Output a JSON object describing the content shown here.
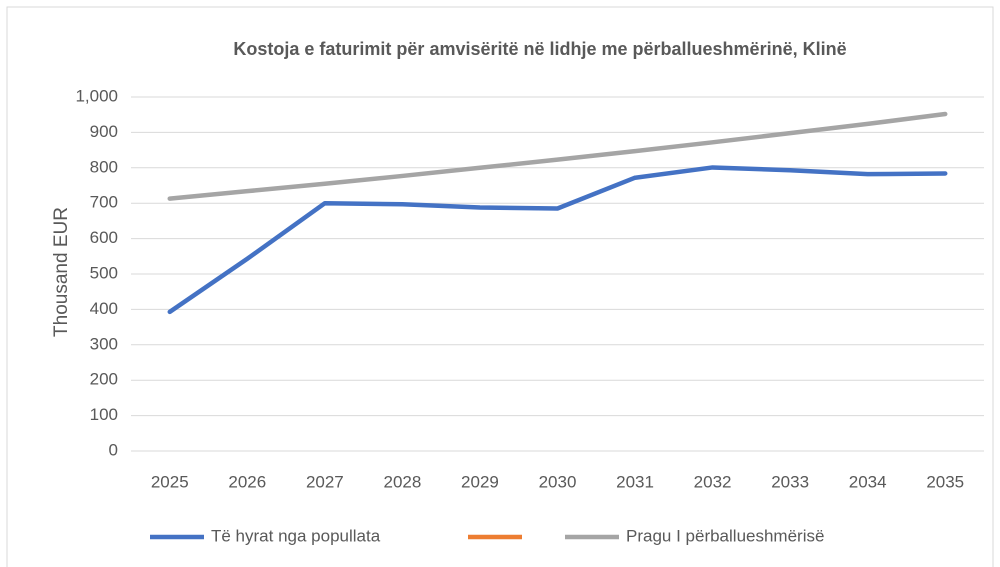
{
  "chart_data": {
    "type": "line",
    "title": "Kostoja e faturimit për amvisëritë në lidhje me përballueshmërinë, Klinë",
    "y_label": "Thousand EUR",
    "categories": [
      "2025",
      "2026",
      "2027",
      "2028",
      "2029",
      "2030",
      "2031",
      "2032",
      "2033",
      "2034",
      "2035"
    ],
    "series": [
      {
        "name": "Të hyrat nga popullata",
        "color": "#4472c4",
        "values": [
          393,
          543,
          700,
          697,
          688,
          685,
          772,
          801,
          793,
          782,
          784
        ]
      },
      {
        "color": "#ed7d31",
        "values": [
          null,
          null,
          null,
          null,
          null,
          null,
          null,
          null,
          null,
          null,
          null
        ]
      },
      {
        "name": "Pragu I përballueshmërisë",
        "color": "#a5a5a5",
        "values": [
          713,
          734,
          755,
          777,
          800,
          823,
          847,
          872,
          898,
          924,
          952
        ]
      }
    ],
    "ylim": [
      0,
      1000
    ],
    "yticks": [
      0,
      100,
      200,
      300,
      400,
      500,
      600,
      700,
      800,
      900,
      {
        "value": 1000,
        "label": "1,000"
      }
    ],
    "grid": true,
    "legend": "bottom"
  }
}
